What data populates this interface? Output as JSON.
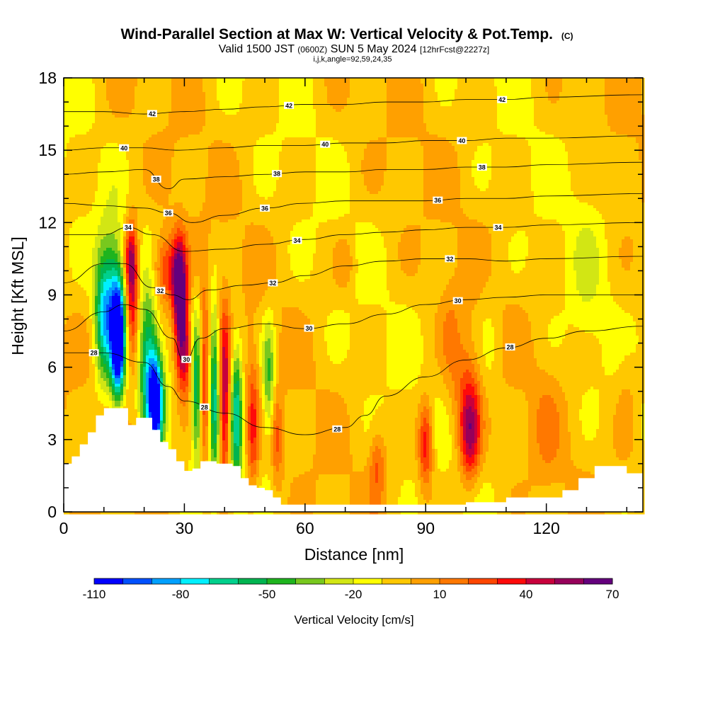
{
  "chart_data": {
    "type": "heatmap",
    "title": "Wind-Parallel Section at Max W: Vertical Velocity & Pot.Temp.",
    "title_mark": "(C)",
    "subtitle_parts": [
      "Valid 1500 JST ",
      "(0600Z)",
      " SUN 5 May 2024 ",
      "[12hrFcst@2227z]"
    ],
    "subtitle2": "i,j,k,angle=92,59,24,35",
    "xlabel": "Distance [nm]",
    "ylabel": "Height [Kft MSL]",
    "xlim": [
      0,
      144
    ],
    "ylim": [
      0,
      18
    ],
    "xticks": [
      0,
      30,
      60,
      90,
      120
    ],
    "yticks": [
      0,
      3,
      6,
      9,
      12,
      15,
      18
    ],
    "colorbar": {
      "title": "Vertical Velocity [cm/s]",
      "labels": [
        -110,
        -80,
        -50,
        -20,
        10,
        40,
        70
      ],
      "min": -110,
      "max": 70,
      "step": 10,
      "colors": [
        "#0000ff",
        "#0050ff",
        "#00a0ff",
        "#00f0ff",
        "#00d08c",
        "#00b450",
        "#1eb41e",
        "#78c81e",
        "#d2e614",
        "#ffff00",
        "#ffc800",
        "#ffa000",
        "#ff7800",
        "#ff4600",
        "#ff0a0a",
        "#c8003c",
        "#96005a",
        "#64007d"
      ]
    },
    "terrain": {
      "x": [
        0,
        2,
        4,
        6,
        8,
        10,
        14,
        16,
        18,
        20,
        22,
        24,
        26,
        28,
        30,
        32,
        34,
        36,
        38,
        40,
        42,
        44,
        46,
        48,
        50,
        52,
        54,
        60,
        70,
        80,
        90,
        100,
        110,
        120,
        124,
        128,
        132,
        136,
        140,
        144
      ],
      "height": [
        2.0,
        2.3,
        2.8,
        3.3,
        4.0,
        4.3,
        4.3,
        3.6,
        3.9,
        3.9,
        3.4,
        2.9,
        2.6,
        2.1,
        1.7,
        1.8,
        2.1,
        2.1,
        2.0,
        2.0,
        1.9,
        1.4,
        1.1,
        1.0,
        0.9,
        0.6,
        0.3,
        0.3,
        0.3,
        0.3,
        0.3,
        0.4,
        0.6,
        0.6,
        0.9,
        1.4,
        1.9,
        1.9,
        1.6,
        1.8
      ]
    },
    "velocity_features": [
      {
        "x": 13.5,
        "y": 7.0,
        "wx": 1.6,
        "wy": 2.2,
        "value": -110
      },
      {
        "x": 12.0,
        "y": 8.5,
        "wx": 3.0,
        "wy": 3.0,
        "value": -60
      },
      {
        "x": 9.5,
        "y": 8.0,
        "wx": 2.0,
        "wy": 2.5,
        "value": -40
      },
      {
        "x": 17.0,
        "y": 9.0,
        "wx": 1.6,
        "wy": 2.8,
        "value": 55
      },
      {
        "x": 16.5,
        "y": 10.5,
        "wx": 1.5,
        "wy": 1.2,
        "value": 30
      },
      {
        "x": 21.0,
        "y": 6.0,
        "wx": 2.2,
        "wy": 3.0,
        "value": -60
      },
      {
        "x": 23.0,
        "y": 4.5,
        "wx": 1.8,
        "wy": 2.0,
        "value": -100
      },
      {
        "x": 25.0,
        "y": 10.0,
        "wx": 3.0,
        "wy": 1.5,
        "value": 35
      },
      {
        "x": 29.0,
        "y": 8.0,
        "wx": 1.6,
        "wy": 2.6,
        "value": 70
      },
      {
        "x": 28.5,
        "y": 9.8,
        "wx": 2.0,
        "wy": 1.6,
        "value": 45
      },
      {
        "x": 30.5,
        "y": 6.5,
        "wx": 1.5,
        "wy": 1.8,
        "value": 40
      },
      {
        "x": 33.0,
        "y": 5.0,
        "wx": 1.2,
        "wy": 3.0,
        "value": -50
      },
      {
        "x": 35.0,
        "y": 5.5,
        "wx": 1.2,
        "wy": 3.5,
        "value": 40
      },
      {
        "x": 37.5,
        "y": 5.0,
        "wx": 1.2,
        "wy": 3.5,
        "value": -55
      },
      {
        "x": 40.0,
        "y": 4.5,
        "wx": 1.3,
        "wy": 3.5,
        "value": 60
      },
      {
        "x": 43.0,
        "y": 4.0,
        "wx": 1.4,
        "wy": 3.0,
        "value": -60
      },
      {
        "x": 47.0,
        "y": 3.5,
        "wx": 1.5,
        "wy": 2.8,
        "value": 35
      },
      {
        "x": 51.0,
        "y": 5.5,
        "wx": 1.6,
        "wy": 2.5,
        "value": -40
      },
      {
        "x": 53.0,
        "y": 3.0,
        "wx": 1.4,
        "wy": 2.0,
        "value": 25
      },
      {
        "x": 70.0,
        "y": 10.3,
        "wx": 2.5,
        "wy": 1.2,
        "value": 15
      },
      {
        "x": 78.0,
        "y": 2.0,
        "wx": 2.0,
        "wy": 1.5,
        "value": 25
      },
      {
        "x": 90.0,
        "y": 2.8,
        "wx": 1.8,
        "wy": 1.8,
        "value": 45
      },
      {
        "x": 96.0,
        "y": 7.5,
        "wx": 2.5,
        "wy": 2.5,
        "value": 10
      },
      {
        "x": 101.0,
        "y": 3.2,
        "wx": 2.5,
        "wy": 2.0,
        "value": 50
      },
      {
        "x": 100.0,
        "y": 5.0,
        "wx": 4.0,
        "wy": 2.5,
        "value": 20
      },
      {
        "x": 106.0,
        "y": 7.0,
        "wx": 3.0,
        "wy": 3.0,
        "value": -10
      },
      {
        "x": 120.0,
        "y": 3.5,
        "wx": 3.5,
        "wy": 2.5,
        "value": 10
      },
      {
        "x": 130.0,
        "y": 9.5,
        "wx": 4.0,
        "wy": 4.0,
        "value": -10
      },
      {
        "x": 140.0,
        "y": 5.0,
        "wx": 3.0,
        "wy": 3.0,
        "value": 10
      }
    ],
    "theta_contours": [
      {
        "value": 28,
        "label": "28",
        "pts": [
          [
            0,
            6.6
          ],
          [
            10,
            6.6
          ],
          [
            20,
            6.2
          ],
          [
            26,
            5.2
          ],
          [
            30,
            4.6
          ],
          [
            40,
            4.1
          ],
          [
            50,
            3.5
          ],
          [
            60,
            3.2
          ],
          [
            70,
            3.5
          ],
          [
            75,
            4.0
          ],
          [
            80,
            4.8
          ],
          [
            90,
            5.6
          ],
          [
            100,
            6.3
          ],
          [
            110,
            6.8
          ],
          [
            120,
            7.2
          ],
          [
            130,
            7.5
          ],
          [
            144,
            7.7
          ]
        ],
        "labels": [
          {
            "x": 7.5,
            "text": "28"
          },
          {
            "x": 35,
            "text": "28"
          },
          {
            "x": 68,
            "text": "28"
          },
          {
            "x": 111,
            "text": "28"
          }
        ]
      },
      {
        "value": 30,
        "label": "30",
        "pts": [
          [
            0,
            7.5
          ],
          [
            10,
            8.3
          ],
          [
            15,
            8.6
          ],
          [
            20,
            8.4
          ],
          [
            27,
            7.2
          ],
          [
            30,
            6.2
          ],
          [
            34,
            7.2
          ],
          [
            40,
            7.6
          ],
          [
            50,
            7.8
          ],
          [
            60,
            7.6
          ],
          [
            70,
            7.8
          ],
          [
            80,
            8.2
          ],
          [
            90,
            8.6
          ],
          [
            100,
            8.8
          ],
          [
            110,
            8.9
          ],
          [
            120,
            9.0
          ],
          [
            144,
            9.0
          ]
        ],
        "labels": [
          {
            "x": 30.5,
            "text": "30"
          },
          {
            "x": 61,
            "text": "30"
          },
          {
            "x": 98,
            "text": "30"
          }
        ]
      },
      {
        "value": 32,
        "label": "32",
        "pts": [
          [
            0,
            9.5
          ],
          [
            10,
            10.3
          ],
          [
            15,
            10.3
          ],
          [
            22,
            9.3
          ],
          [
            27,
            9.0
          ],
          [
            31,
            8.8
          ],
          [
            36,
            9.2
          ],
          [
            45,
            9.4
          ],
          [
            52,
            9.5
          ],
          [
            60,
            9.8
          ],
          [
            70,
            10.2
          ],
          [
            80,
            10.4
          ],
          [
            90,
            10.5
          ],
          [
            100,
            10.5
          ],
          [
            110,
            10.4
          ],
          [
            120,
            10.5
          ],
          [
            144,
            10.6
          ]
        ],
        "labels": [
          {
            "x": 24,
            "text": "32"
          },
          {
            "x": 52,
            "text": "32"
          },
          {
            "x": 96,
            "text": "32"
          }
        ]
      },
      {
        "value": 34,
        "label": "34",
        "pts": [
          [
            0,
            11.5
          ],
          [
            10,
            11.5
          ],
          [
            16,
            11.8
          ],
          [
            22,
            11.5
          ],
          [
            30,
            10.8
          ],
          [
            40,
            10.9
          ],
          [
            50,
            11.1
          ],
          [
            60,
            11.3
          ],
          [
            70,
            11.5
          ],
          [
            80,
            11.6
          ],
          [
            90,
            11.7
          ],
          [
            100,
            11.8
          ],
          [
            110,
            11.8
          ],
          [
            120,
            11.9
          ],
          [
            144,
            12.0
          ]
        ],
        "labels": [
          {
            "x": 16,
            "text": "34"
          },
          {
            "x": 58,
            "text": "34"
          },
          {
            "x": 108,
            "text": "34"
          }
        ]
      },
      {
        "value": 36,
        "label": "36",
        "pts": [
          [
            0,
            12.8
          ],
          [
            10,
            12.7
          ],
          [
            20,
            12.6
          ],
          [
            26,
            12.4
          ],
          [
            32,
            12.0
          ],
          [
            40,
            12.3
          ],
          [
            50,
            12.6
          ],
          [
            60,
            12.8
          ],
          [
            70,
            12.9
          ],
          [
            80,
            12.9
          ],
          [
            90,
            12.9
          ],
          [
            100,
            13.0
          ],
          [
            110,
            13.0
          ],
          [
            120,
            13.1
          ],
          [
            144,
            13.2
          ]
        ],
        "labels": [
          {
            "x": 26,
            "text": "36"
          },
          {
            "x": 50,
            "text": "36"
          },
          {
            "x": 93,
            "text": "36"
          }
        ]
      },
      {
        "value": 38,
        "label": "38",
        "pts": [
          [
            0,
            14.0
          ],
          [
            10,
            14.1
          ],
          [
            20,
            14.2
          ],
          [
            26,
            13.4
          ],
          [
            30,
            13.8
          ],
          [
            40,
            13.9
          ],
          [
            50,
            14.0
          ],
          [
            60,
            14.1
          ],
          [
            70,
            14.1
          ],
          [
            80,
            14.2
          ],
          [
            90,
            14.2
          ],
          [
            100,
            14.3
          ],
          [
            110,
            14.3
          ],
          [
            120,
            14.4
          ],
          [
            144,
            14.5
          ]
        ],
        "labels": [
          {
            "x": 23,
            "text": "38"
          },
          {
            "x": 53,
            "text": "38"
          },
          {
            "x": 104,
            "text": "38"
          }
        ]
      },
      {
        "value": 40,
        "label": "40",
        "pts": [
          [
            0,
            15.0
          ],
          [
            10,
            15.1
          ],
          [
            20,
            15.1
          ],
          [
            28,
            15.0
          ],
          [
            40,
            15.1
          ],
          [
            50,
            15.2
          ],
          [
            60,
            15.2
          ],
          [
            70,
            15.3
          ],
          [
            80,
            15.3
          ],
          [
            90,
            15.4
          ],
          [
            100,
            15.4
          ],
          [
            110,
            15.5
          ],
          [
            120,
            15.5
          ],
          [
            144,
            15.6
          ]
        ],
        "labels": [
          {
            "x": 15,
            "text": "40"
          },
          {
            "x": 65,
            "text": "40"
          },
          {
            "x": 99,
            "text": "40"
          }
        ]
      },
      {
        "value": 42,
        "label": "42",
        "pts": [
          [
            0,
            16.6
          ],
          [
            10,
            16.6
          ],
          [
            20,
            16.5
          ],
          [
            30,
            16.6
          ],
          [
            40,
            16.7
          ],
          [
            50,
            16.8
          ],
          [
            60,
            16.9
          ],
          [
            70,
            16.9
          ],
          [
            80,
            17.0
          ],
          [
            90,
            17.0
          ],
          [
            100,
            17.1
          ],
          [
            110,
            17.1
          ],
          [
            120,
            17.2
          ],
          [
            144,
            17.3
          ]
        ],
        "labels": [
          {
            "x": 22,
            "text": "42"
          },
          {
            "x": 56,
            "text": "42"
          },
          {
            "x": 109,
            "text": "42"
          }
        ]
      }
    ]
  }
}
